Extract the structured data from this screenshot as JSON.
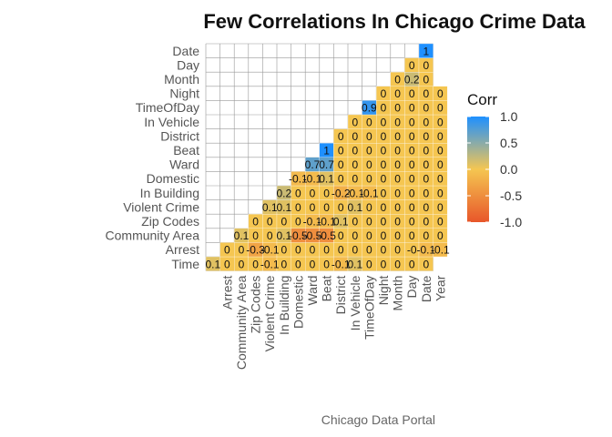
{
  "chart_data": {
    "type": "heatmap",
    "title": "Few Correlations In Chicago Crime Data",
    "caption": "Chicago Data Portal",
    "legend": {
      "title": "Corr",
      "placement": "right",
      "ticks": [
        "1.0",
        "0.5",
        "0.0",
        "-0.5",
        "-1.0"
      ],
      "tick_values": [
        1,
        0.5,
        0,
        -0.5,
        -1
      ]
    },
    "colors": {
      "low": "#e8562a",
      "mid": "#f5c651",
      "high": "#1e90ff",
      "grid": "#999999",
      "mid_soft": "#e6c77a"
    },
    "x_categories": [
      "Arrest",
      "Community Area",
      "Zip Codes",
      "Violent Crime",
      "In Building",
      "Domestic",
      "Ward",
      "Beat",
      "District",
      "In Vehicle",
      "TimeOfDay",
      "Night",
      "Month",
      "Day",
      "Date",
      "Year"
    ],
    "y_categories": [
      "Time",
      "Arrest",
      "Community Area",
      "Zip Codes",
      "Violent Crime",
      "In Building",
      "Domestic",
      "Ward",
      "Beat",
      "District",
      "In Vehicle",
      "TimeOfDay",
      "Night",
      "Month",
      "Day",
      "Date"
    ],
    "rows": [
      [
        "0.1",
        "0",
        "0",
        "0",
        "-0.1",
        "0",
        "0",
        "0",
        "0",
        "-0.1",
        "0.1",
        "0",
        "0",
        "0",
        "0",
        "0"
      ],
      [
        "0",
        "0",
        "-0.3",
        "-0.1",
        "0",
        "0",
        "0",
        "0",
        "0",
        "0",
        "0",
        "0",
        "0",
        "-0",
        "-0.1",
        "-0.1"
      ],
      [
        "0.1",
        "0",
        "0",
        "0.1",
        "-0.5",
        "-0.5",
        "-0.5",
        "0",
        "0",
        "0",
        "0",
        "0",
        "0",
        "0",
        "0"
      ],
      [
        "0",
        "0",
        "0",
        "0",
        "-0.1",
        "-0.1",
        "0.1",
        "0",
        "0",
        "0",
        "0",
        "0",
        "0",
        "0"
      ],
      [
        "0.1",
        "0.1",
        "0",
        "0",
        "0",
        "0",
        "0.1",
        "0",
        "0",
        "0",
        "0",
        "0",
        "0"
      ],
      [
        "0.2",
        "0",
        "0",
        "0",
        "-0.2",
        "-0.1",
        "-0.1",
        "0",
        "0",
        "0",
        "0",
        "0"
      ],
      [
        "-0.1",
        "-0.1",
        "0.1",
        "0",
        "0",
        "0",
        "0",
        "0",
        "0",
        "0",
        "0"
      ],
      [
        "0.7",
        "0.7",
        "0",
        "0",
        "0",
        "0",
        "0",
        "0",
        "0",
        "0"
      ],
      [
        "1",
        "0",
        "0",
        "0",
        "0",
        "0",
        "0",
        "0",
        "0"
      ],
      [
        "0",
        "0",
        "0",
        "0",
        "0",
        "0",
        "0",
        "0"
      ],
      [
        "0",
        "0",
        "0",
        "0",
        "0",
        "0",
        "0"
      ],
      [
        "0.9",
        "0",
        "0",
        "0",
        "0",
        "0"
      ],
      [
        "0",
        "0",
        "0",
        "0",
        "0"
      ],
      [
        "0",
        "0.2",
        "0"
      ],
      [
        "0",
        "0"
      ],
      [
        "1"
      ]
    ]
  }
}
